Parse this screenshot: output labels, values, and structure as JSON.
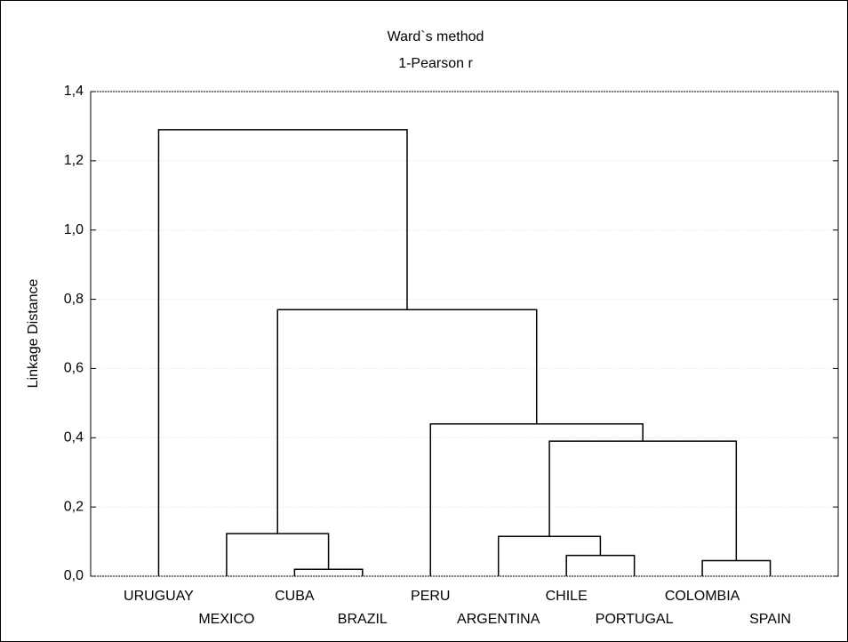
{
  "chart_data": {
    "type": "dendrogram",
    "title": "Ward`s method",
    "subtitle": "1-Pearson r",
    "y_label": "Linkage Distance",
    "ylim": [
      0,
      1.4
    ],
    "yticks": [
      {
        "value": 0,
        "label": "0,0"
      },
      {
        "value": 0.2,
        "label": "0,2"
      },
      {
        "value": 0.4,
        "label": "0,4"
      },
      {
        "value": 0.6,
        "label": "0,6"
      },
      {
        "value": 0.8,
        "label": "0,8"
      },
      {
        "value": 1.0,
        "label": "1,0"
      },
      {
        "value": 1.2,
        "label": "1,2"
      },
      {
        "value": 1.4,
        "label": "1,4"
      }
    ],
    "grid": true,
    "color": "#000000",
    "tree": {
      "height": 1.29,
      "children": [
        {
          "label": "URUGUAY"
        },
        {
          "height": 0.77,
          "children": [
            {
              "height": 0.123,
              "children": [
                {
                  "label": "MEXICO"
                },
                {
                  "height": 0.02,
                  "children": [
                    {
                      "label": "CUBA"
                    },
                    {
                      "label": "BRAZIL"
                    }
                  ]
                }
              ]
            },
            {
              "height": 0.44,
              "children": [
                {
                  "label": "PERU"
                },
                {
                  "height": 0.39,
                  "children": [
                    {
                      "height": 0.115,
                      "children": [
                        {
                          "label": "ARGENTINA"
                        },
                        {
                          "height": 0.06,
                          "children": [
                            {
                              "label": "CHILE"
                            },
                            {
                              "label": "PORTUGAL"
                            }
                          ]
                        }
                      ]
                    },
                    {
                      "height": 0.045,
                      "children": [
                        {
                          "label": "COLOMBIA"
                        },
                        {
                          "label": "SPAIN"
                        }
                      ]
                    }
                  ]
                }
              ]
            }
          ]
        }
      ]
    }
  }
}
